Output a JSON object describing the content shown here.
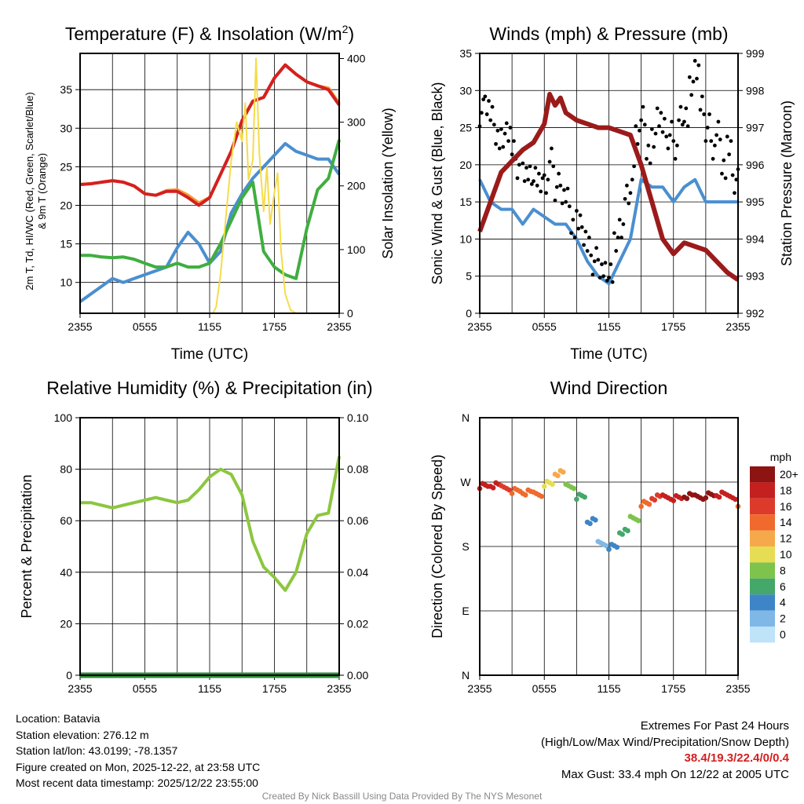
{
  "chart_data": [
    {
      "type": "line",
      "title": "Temperature (F) & Insolation (W/m2)",
      "title_main": "Temperature (F) & Insolation (W/m",
      "title_sup": "2",
      "title_end": ")",
      "xlabel": "Time (UTC)",
      "ylabel": "2m T, Td, HI/WC (Red, Green, Scarlet/Blue)",
      "ylabel2": "& 9m T (Orange)",
      "ylabel_right": "Solar Insolation (Yellow)",
      "xticks": [
        "2355",
        "0555",
        "1155",
        "1755",
        "2355"
      ],
      "yticks": [
        "10",
        "15",
        "20",
        "25",
        "30",
        "35"
      ],
      "yticks_right": [
        "0",
        "100",
        "200",
        "300",
        "400"
      ],
      "ylim": [
        6,
        39.7
      ],
      "ylim_right": [
        0,
        408
      ],
      "xlim": [
        0,
        24
      ],
      "series": [
        {
          "name": "9m T",
          "color": "#f39c33",
          "axis": "left",
          "x": [
            0,
            1,
            2,
            3,
            4,
            5,
            6,
            7,
            8,
            9,
            10,
            11,
            12,
            13,
            14,
            15,
            16,
            17,
            18,
            19,
            20,
            21,
            22,
            23,
            24
          ],
          "values": [
            22.7,
            22.8,
            23,
            23.2,
            23,
            22.5,
            21.5,
            21.3,
            21.9,
            22,
            21.3,
            20.3,
            21,
            24,
            27,
            31,
            33.5,
            34,
            36.5,
            38.2,
            37,
            36,
            35.5,
            35.2,
            33.2
          ]
        },
        {
          "name": "2m T",
          "color": "#d42020",
          "axis": "left",
          "x": [
            0,
            1,
            2,
            3,
            4,
            5,
            6,
            7,
            8,
            9,
            10,
            11,
            12,
            13,
            14,
            15,
            16,
            17,
            18,
            19,
            20,
            21,
            22,
            23,
            24
          ],
          "values": [
            22.7,
            22.8,
            23,
            23.2,
            23,
            22.5,
            21.5,
            21.3,
            21.8,
            21.8,
            21,
            20,
            21,
            24,
            27,
            31,
            33.5,
            34,
            36.5,
            38.2,
            37,
            36,
            35.5,
            35,
            33
          ]
        },
        {
          "name": "Td",
          "color": "#4a8fd0",
          "axis": "left",
          "x": [
            0,
            1,
            2,
            3,
            4,
            5,
            6,
            7,
            8,
            9,
            10,
            11,
            12,
            13,
            14,
            15,
            16,
            17,
            18,
            19,
            20,
            21,
            22,
            23,
            24
          ],
          "values": [
            7.5,
            8.5,
            9.5,
            10.5,
            10,
            10.5,
            11,
            11.5,
            12,
            14.5,
            16.5,
            15,
            12.5,
            14,
            19,
            21.5,
            23.5,
            25,
            26.5,
            28,
            27,
            26.5,
            26,
            26,
            24
          ]
        },
        {
          "name": "HI/WC",
          "color": "#3fae3f",
          "axis": "left",
          "x": [
            0,
            1,
            2,
            3,
            4,
            5,
            6,
            7,
            8,
            9,
            10,
            11,
            12,
            13,
            14,
            15,
            16,
            17,
            18,
            19,
            20,
            21,
            22,
            23,
            24
          ],
          "values": [
            13.5,
            13.5,
            13.3,
            13.2,
            13.3,
            13,
            12.5,
            12,
            12,
            12.5,
            12,
            12,
            12.5,
            15,
            18,
            21,
            23,
            14,
            12,
            11,
            10.5,
            17,
            22,
            23.5,
            28.5
          ]
        },
        {
          "name": "Solar Insolation",
          "color": "#f5dc4a",
          "axis": "right",
          "x": [
            0,
            12.3,
            12.6,
            13,
            13.5,
            14,
            14.5,
            15,
            15.3,
            15.6,
            16,
            16.3,
            16.6,
            17,
            17.3,
            17.6,
            18,
            18.3,
            18.6,
            19,
            19.5,
            20,
            24
          ],
          "values": [
            0,
            0,
            10,
            60,
            150,
            240,
            300,
            270,
            330,
            210,
            240,
            400,
            250,
            160,
            230,
            140,
            190,
            220,
            100,
            30,
            5,
            0,
            0
          ]
        }
      ]
    },
    {
      "type": "line",
      "title": "Winds (mph) & Pressure (mb)",
      "xlabel": "Time (UTC)",
      "ylabel": "Sonic Wind & Gust (Blue, Black)",
      "ylabel_right": "Station Pressure (Maroon)",
      "xticks": [
        "2355",
        "0555",
        "1155",
        "1755",
        "2355"
      ],
      "yticks": [
        "0",
        "5",
        "10",
        "15",
        "20",
        "25",
        "30",
        "35"
      ],
      "yticks_right": [
        "992",
        "993",
        "994",
        "995",
        "996",
        "997",
        "998",
        "999"
      ],
      "ylim": [
        0,
        35
      ],
      "ylim_right": [
        992,
        999
      ],
      "xlim": [
        0,
        24
      ],
      "series": [
        {
          "name": "Sonic Wind",
          "color": "#4a8fd0",
          "axis": "left",
          "x": [
            0,
            1,
            2,
            3,
            4,
            5,
            6,
            7,
            8,
            9,
            10,
            11,
            12,
            13,
            14,
            15,
            16,
            17,
            18,
            19,
            20,
            21,
            22,
            23,
            24
          ],
          "values": [
            18,
            15,
            14,
            14,
            12,
            14,
            13,
            12,
            12,
            10,
            7,
            5,
            4,
            7,
            10,
            18,
            17,
            17,
            15,
            17,
            18,
            15,
            15,
            15,
            15
          ]
        },
        {
          "name": "Gust",
          "color": "#000000",
          "axis": "left",
          "type": "scatter",
          "x": [
            0,
            0.5,
            1,
            1.5,
            2,
            2.5,
            3,
            3.5,
            4,
            4.5,
            5,
            5.5,
            6,
            6.5,
            7,
            7.5,
            8,
            8.5,
            9,
            9.5,
            10,
            10.5,
            11,
            11.5,
            12,
            12.5,
            13,
            13.5,
            14,
            14.5,
            15,
            15.5,
            16,
            16.5,
            17,
            17.5,
            18,
            18.5,
            19,
            19.5,
            20,
            20.5,
            21,
            21.5,
            22,
            22.5,
            23,
            23.5,
            24
          ],
          "values": [
            27,
            28,
            26,
            24,
            23,
            25,
            22,
            20,
            19,
            18,
            19,
            17,
            18,
            21,
            17,
            16,
            15,
            12,
            12,
            11,
            9,
            7,
            6,
            5,
            6,
            9,
            12,
            16,
            18,
            24,
            26,
            22,
            23,
            27,
            25,
            24,
            22,
            26,
            27,
            30,
            33.4,
            28,
            25,
            22,
            24,
            20,
            22,
            18,
            20
          ]
        },
        {
          "name": "Station Pressure",
          "color": "#9b1b1b",
          "axis": "right",
          "x": [
            0,
            1,
            2,
            3,
            4,
            5,
            6,
            6.5,
            7,
            7.5,
            8,
            9,
            10,
            11,
            12,
            13,
            14,
            15,
            16,
            17,
            18,
            19,
            20,
            21,
            22,
            23,
            24
          ],
          "values": [
            994.2,
            995.0,
            995.8,
            996.1,
            996.4,
            996.6,
            997.1,
            997.9,
            997.6,
            997.8,
            997.4,
            997.2,
            997.1,
            997.0,
            997.0,
            996.9,
            996.8,
            996.0,
            995.0,
            994.0,
            993.6,
            993.9,
            993.8,
            993.7,
            993.4,
            993.1,
            992.9
          ]
        }
      ]
    },
    {
      "type": "line",
      "title": "Relative Humidity (%) & Precipitation (in)",
      "ylabel": "Percent & Precipitation",
      "xticks": [
        "2355",
        "0555",
        "1155",
        "1755",
        "2355"
      ],
      "yticks": [
        "0",
        "20",
        "40",
        "60",
        "80",
        "100"
      ],
      "yticks_right": [
        "0.00",
        "0.02",
        "0.04",
        "0.06",
        "0.08",
        "0.10"
      ],
      "ylim": [
        0,
        100
      ],
      "ylim_right": [
        0,
        0.1
      ],
      "xlim": [
        0,
        24
      ],
      "series": [
        {
          "name": "Relative Humidity",
          "color": "#8cc63f",
          "axis": "left",
          "x": [
            0,
            1,
            2,
            3,
            4,
            5,
            6,
            7,
            8,
            9,
            10,
            11,
            12,
            13,
            14,
            15,
            16,
            17,
            18,
            19,
            20,
            21,
            22,
            23,
            24
          ],
          "values": [
            67,
            67,
            66,
            65,
            66,
            67,
            68,
            69,
            68,
            67,
            68,
            72,
            77,
            80,
            78,
            70,
            52,
            42,
            38,
            33,
            40,
            55,
            62,
            63,
            85
          ]
        },
        {
          "name": "Precipitation",
          "color": "#2e8b3a",
          "axis": "right",
          "x": [
            0,
            24
          ],
          "values": [
            0,
            0
          ]
        }
      ]
    },
    {
      "type": "scatter",
      "title": "Wind Direction",
      "ylabel": "Direction (Colored By Speed)",
      "xticks": [
        "2355",
        "0555",
        "1155",
        "1755",
        "2355"
      ],
      "yticks": [
        "N",
        "E",
        "S",
        "W",
        "N"
      ],
      "ylim": [
        0,
        360
      ],
      "xlim": [
        0,
        24
      ],
      "series": [
        {
          "name": "Direction",
          "x": [
            0,
            1,
            2,
            3,
            4,
            5,
            6,
            7,
            8,
            9,
            10,
            11,
            12,
            13,
            14,
            15,
            16,
            17,
            18,
            19,
            20,
            21,
            22,
            23,
            24
          ],
          "values": [
            265,
            265,
            263,
            258,
            255,
            254,
            268,
            282,
            265,
            250,
            215,
            185,
            180,
            200,
            220,
            240,
            248,
            250,
            248,
            250,
            250,
            252,
            252,
            250,
            240
          ],
          "speed": [
            18,
            18,
            16,
            14,
            13,
            14,
            9,
            11,
            7,
            6,
            3,
            2,
            4,
            6,
            8,
            13,
            16,
            18,
            18,
            19,
            20,
            19,
            18,
            17,
            14
          ]
        }
      ],
      "legend": {
        "title": "mph",
        "labels": [
          "20+",
          "18",
          "16",
          "14",
          "12",
          "10",
          "8",
          "6",
          "4",
          "2",
          "0"
        ],
        "colors": [
          "#8e1313",
          "#c4201f",
          "#dd3a2b",
          "#ef6a2c",
          "#f6a94a",
          "#e7dd55",
          "#7ec34c",
          "#43a86a",
          "#3d85c6",
          "#7fb8e6",
          "#bfe3f8"
        ]
      }
    }
  ],
  "info": {
    "location": "Location: Batavia",
    "elevation": "Station elevation: 276.12 m",
    "latlon": "Station lat/lon: 43.0199; -78.1357",
    "created": "Figure created on Mon, 2025-12-22, at 23:58 UTC",
    "recent": "Most recent data timestamp: 2025/12/22 23:55:00"
  },
  "extremes": {
    "title": "Extremes For Past 24 Hours",
    "subtitle": "(High/Low/Max Wind/Precipitation/Snow Depth)",
    "values": "38.4/19.3/22.4/0/0.4",
    "gust": "Max Gust: 33.4 mph On 12/22 at 2005 UTC",
    "color": "#d42020"
  },
  "credit": "Created By Nick Bassill Using Data Provided By The NYS Mesonet"
}
